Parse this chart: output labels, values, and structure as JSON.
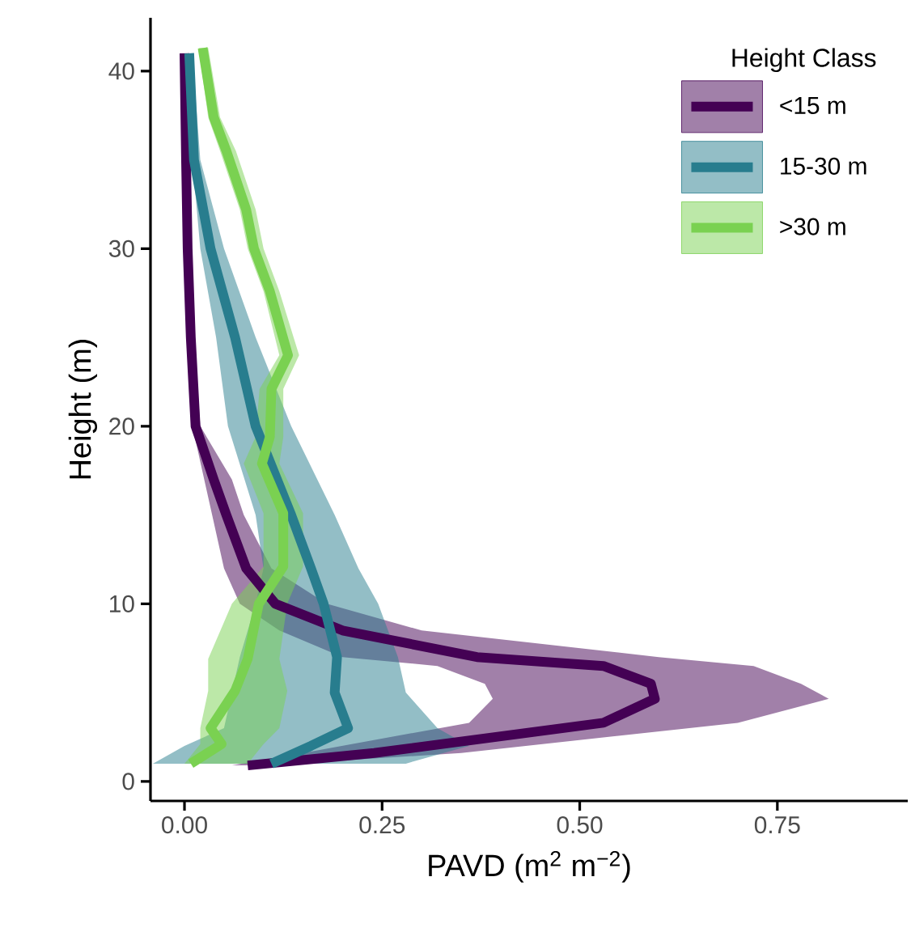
{
  "chart_data": {
    "type": "line",
    "orientation": "horizontal",
    "xlabel": "PAVD (m$^{2}$ m$^{−2}$)",
    "ylabel": "Height (m)",
    "legend_title": "Height Class",
    "legend": "top right",
    "grid": false,
    "xlim": [
      -0.043,
      0.915
    ],
    "ylim": [
      -1.1,
      43
    ],
    "xticks": [
      {
        "value": 0,
        "label": "0.00"
      },
      0.25,
      {
        "value": 0.5,
        "label": "0.50"
      },
      0.75
    ],
    "yticks": [
      0,
      10,
      20,
      30,
      40
    ],
    "series": [
      {
        "name": "<15 m",
        "color": "#440154",
        "x": [
          0.9,
          1.6,
          3.3,
          4.65,
          5.5,
          6.5,
          7,
          8.5,
          10,
          12,
          15,
          17,
          20,
          25,
          30,
          35,
          41
        ],
        "values": [
          0.08,
          0.24,
          0.53,
          0.595,
          0.59,
          0.53,
          0.37,
          0.2,
          0.115,
          0.078,
          0.053,
          0.037,
          0.014,
          0.008,
          0.004,
          0.002,
          0.0
        ],
        "lower": [
          0.06,
          0.15,
          0.36,
          0.39,
          0.38,
          0.32,
          0.2,
          0.12,
          0.07,
          0.05,
          0.035,
          0.025,
          0.01,
          0.005,
          0.002,
          0.0,
          0.0
        ],
        "upper": [
          0.1,
          0.35,
          0.7,
          0.815,
          0.78,
          0.72,
          0.6,
          0.3,
          0.18,
          0.11,
          0.075,
          0.06,
          0.02,
          0.012,
          0.006,
          0.004,
          0.001
        ]
      },
      {
        "name": "15-30 m",
        "color": "#287d8e",
        "x": [
          1,
          2,
          3,
          5,
          7,
          10,
          12,
          15,
          20,
          25,
          30,
          35,
          41
        ],
        "values": [
          0.11,
          0.16,
          0.207,
          0.19,
          0.193,
          0.176,
          0.16,
          0.135,
          0.09,
          0.064,
          0.033,
          0.012,
          0.006
        ],
        "lower": [
          -0.04,
          0.0,
          0.05,
          0.06,
          0.07,
          0.09,
          0.1,
          0.09,
          0.055,
          0.04,
          0.02,
          0.01,
          0.004
        ],
        "upper": [
          0.28,
          0.36,
          0.32,
          0.28,
          0.27,
          0.245,
          0.22,
          0.19,
          0.135,
          0.09,
          0.05,
          0.02,
          0.01
        ]
      },
      {
        "name": ">30 m",
        "color": "#7ad151",
        "x": [
          1,
          2.1,
          3,
          5.1,
          6.9,
          10,
          12.1,
          15.1,
          17.9,
          19.4,
          22.1,
          24,
          27.6,
          30,
          32.2,
          35.5,
          37.4,
          41.3
        ],
        "values": [
          0.008,
          0.047,
          0.033,
          0.064,
          0.08,
          0.094,
          0.125,
          0.125,
          0.098,
          0.108,
          0.11,
          0.131,
          0.108,
          0.088,
          0.078,
          0.053,
          0.037,
          0.023
        ],
        "lower": [
          0.0,
          0.02,
          0.02,
          0.03,
          0.03,
          0.06,
          0.1,
          0.1,
          0.075,
          0.09,
          0.095,
          0.12,
          0.1,
          0.08,
          0.07,
          0.045,
          0.03,
          0.018
        ],
        "upper": [
          0.08,
          0.1,
          0.12,
          0.13,
          0.12,
          0.13,
          0.15,
          0.15,
          0.12,
          0.125,
          0.125,
          0.145,
          0.12,
          0.1,
          0.09,
          0.065,
          0.045,
          0.03
        ]
      }
    ]
  }
}
